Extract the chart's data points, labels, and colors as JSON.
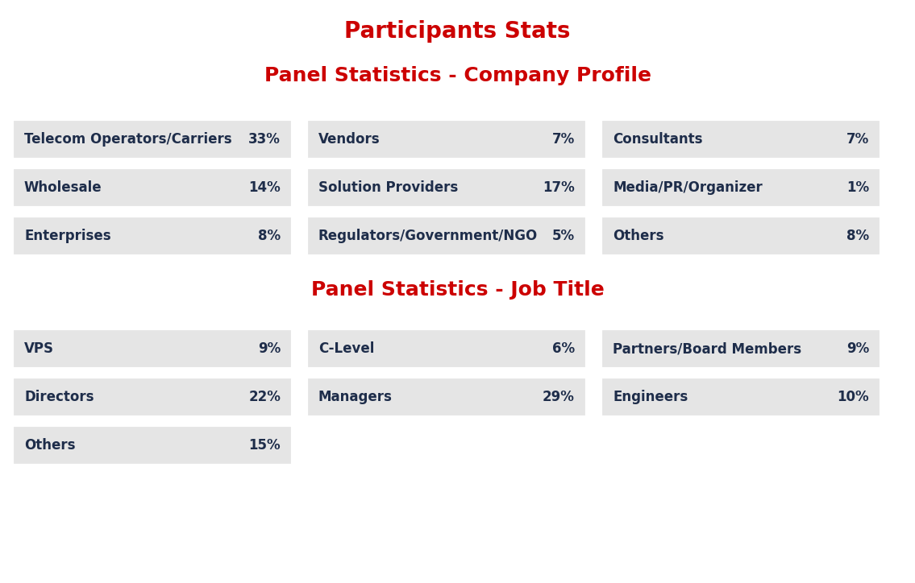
{
  "title": "Participants Stats",
  "title_color": "#cc0000",
  "title_fontsize": 20,
  "section1_title": "Panel Statistics - Company Profile",
  "section2_title": "Panel Statistics - Job Title",
  "section_title_color": "#cc0000",
  "section_title_fontsize": 18,
  "background_color": "#ffffff",
  "cell_bg_color": "#e5e5e5",
  "label_color": "#1e2d4a",
  "value_color": "#1e2d4a",
  "label_fontsize": 12,
  "value_fontsize": 12,
  "company_profile": [
    [
      {
        "label": "Telecom Operators/Carriers",
        "value": "33%"
      },
      {
        "label": "Wholesale",
        "value": "14%"
      },
      {
        "label": "Enterprises",
        "value": "8%"
      }
    ],
    [
      {
        "label": "Vendors",
        "value": "7%"
      },
      {
        "label": "Solution Providers",
        "value": "17%"
      },
      {
        "label": "Regulators/Government/NGO",
        "value": "5%"
      }
    ],
    [
      {
        "label": "Consultants",
        "value": "7%"
      },
      {
        "label": "Media/PR/Organizer",
        "value": "1%"
      },
      {
        "label": "Others",
        "value": "8%"
      }
    ]
  ],
  "job_title": [
    [
      {
        "label": "VPS",
        "value": "9%"
      },
      {
        "label": "Directors",
        "value": "22%"
      },
      {
        "label": "Others",
        "value": "15%"
      }
    ],
    [
      {
        "label": "C-Level",
        "value": "6%"
      },
      {
        "label": "Managers",
        "value": "29%"
      }
    ],
    [
      {
        "label": "Partners/Board Members",
        "value": "9%"
      },
      {
        "label": "Engineers",
        "value": "10%"
      }
    ]
  ],
  "fig_width": 11.35,
  "fig_height": 7.24,
  "dpi": 100
}
